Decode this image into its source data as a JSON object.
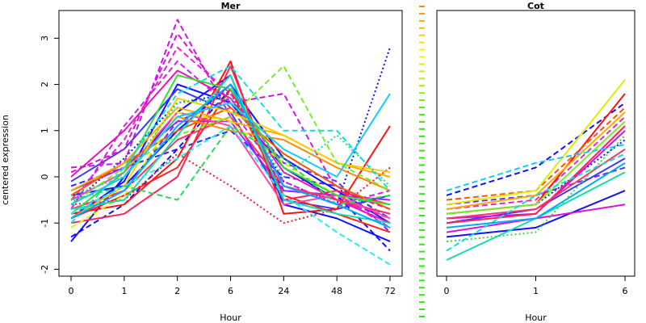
{
  "chart_data": [
    {
      "type": "line",
      "title": "Mer",
      "xlabel": "Hour",
      "ylabel": "centered expression",
      "categories": [
        "0",
        "1",
        "2",
        "6",
        "24",
        "48",
        "72"
      ],
      "yticks": [
        -2,
        -1,
        0,
        1,
        2,
        3
      ],
      "ylim": [
        -2.15,
        3.6
      ],
      "grid": false,
      "legend": "none",
      "series": [
        {
          "values": [
            -1.3,
            -0.6,
            0.6,
            1.9,
            -0.3,
            -0.4,
            -1.6
          ],
          "color": "#1111ff",
          "dash": "dashed"
        },
        {
          "values": [
            -0.9,
            -0.1,
            2.0,
            1.6,
            0.2,
            -0.5,
            -0.8
          ],
          "color": "#1111ff",
          "dash": "solid"
        },
        {
          "values": [
            -0.6,
            0.4,
            1.6,
            1.8,
            -0.1,
            -0.6,
            2.8
          ],
          "color": "#1111ff",
          "dash": "dotted"
        },
        {
          "values": [
            -0.4,
            -0.2,
            1.0,
            2.0,
            0.4,
            -0.3,
            -1.0
          ],
          "color": "#1111ff",
          "dash": "solid"
        },
        {
          "values": [
            -1.4,
            0.0,
            1.4,
            2.2,
            -0.6,
            -0.9,
            -1.4
          ],
          "color": "#1111ff",
          "dash": "solid"
        },
        {
          "values": [
            -0.2,
            0.2,
            0.6,
            1.0,
            0.0,
            -0.2,
            -0.9
          ],
          "color": "#2a2aff",
          "dash": "dashed"
        },
        {
          "values": [
            -0.1,
            0.6,
            1.9,
            1.4,
            -0.5,
            -0.7,
            -0.4
          ],
          "color": "#3a3aff",
          "dash": "solid"
        },
        {
          "values": [
            -0.8,
            -0.3,
            1.2,
            1.7,
            0.3,
            -0.1,
            -1.2
          ],
          "color": "#6a2bff",
          "dash": "dashed"
        },
        {
          "values": [
            0.2,
            0.3,
            3.4,
            1.3,
            -0.2,
            -0.5,
            -0.9
          ],
          "color": "#cc11ee",
          "dash": "dashed"
        },
        {
          "values": [
            0.1,
            0.6,
            3.1,
            1.6,
            1.8,
            -0.3,
            -0.7
          ],
          "color": "#dd11dd",
          "dash": "dashed"
        },
        {
          "values": [
            -0.5,
            0.8,
            2.8,
            1.8,
            0.2,
            -0.4,
            -1.1
          ],
          "color": "#ee22cc",
          "dash": "dashed"
        },
        {
          "values": [
            -0.7,
            1.1,
            2.5,
            1.5,
            -0.1,
            -0.6,
            -0.3
          ],
          "color": "#cc22ee",
          "dash": "dashed"
        },
        {
          "values": [
            -0.3,
            0.2,
            1.2,
            1.2,
            -0.3,
            -0.4,
            -0.5
          ],
          "color": "#aa22ff",
          "dash": "solid"
        },
        {
          "values": [
            0.0,
            1.0,
            2.3,
            1.7,
            0.1,
            -0.5,
            -1.0
          ],
          "color": "#ee11bb",
          "dash": "solid"
        },
        {
          "values": [
            -0.8,
            -0.6,
            0.4,
            2.5,
            -0.8,
            -0.7,
            1.1
          ],
          "color": "#ff1111",
          "dash": "solid"
        },
        {
          "values": [
            -0.9,
            -0.4,
            0.2,
            1.9,
            -0.4,
            -0.8,
            -1.2
          ],
          "color": "#ff2222",
          "dash": "solid"
        },
        {
          "values": [
            -0.6,
            -0.5,
            0.5,
            -0.2,
            -1.0,
            -0.7,
            0.2
          ],
          "color": "#ff1133",
          "dash": "dotted"
        },
        {
          "values": [
            -1.0,
            -0.8,
            0.0,
            2.4,
            -0.5,
            -0.3,
            -0.6
          ],
          "color": "#ff2255",
          "dash": "solid"
        },
        {
          "values": [
            -0.7,
            -0.3,
            0.8,
            1.3,
            -0.2,
            -0.5,
            -0.8
          ],
          "color": "#ff3366",
          "dash": "solid"
        },
        {
          "values": [
            -0.5,
            0.1,
            1.4,
            1.1,
            -0.6,
            -0.4,
            -0.9
          ],
          "color": "#ff44aa",
          "dash": "solid"
        },
        {
          "values": [
            -0.4,
            0.3,
            1.0,
            1.5,
            0.5,
            -0.2,
            -0.7
          ],
          "color": "#ff5500",
          "dash": "solid"
        },
        {
          "values": [
            -0.6,
            0.0,
            1.3,
            1.0,
            0.8,
            0.2,
            -0.3
          ],
          "color": "#ff8800",
          "dash": "solid"
        },
        {
          "values": [
            -0.3,
            0.3,
            1.5,
            1.2,
            0.9,
            0.3,
            0.0
          ],
          "color": "#ffaa00",
          "dash": "solid"
        },
        {
          "values": [
            -0.9,
            -0.2,
            1.7,
            1.4,
            0.9,
            0.3,
            0.1
          ],
          "color": "#ffcc00",
          "dash": "solid"
        },
        {
          "values": [
            -1.1,
            -0.4,
            1.4,
            1.2,
            0.3,
            -0.4,
            -0.6
          ],
          "color": "#ddee00",
          "dash": "dashed"
        },
        {
          "values": [
            -0.6,
            0.2,
            0.9,
            1.3,
            2.4,
            0.3,
            -0.3
          ],
          "color": "#77ee22",
          "dash": "dashed"
        },
        {
          "values": [
            -0.8,
            0.1,
            2.2,
            1.9,
            0.2,
            -0.4,
            -0.6
          ],
          "color": "#33dd33",
          "dash": "solid"
        },
        {
          "values": [
            -0.5,
            -0.2,
            -0.5,
            1.1,
            0.4,
            -0.6,
            -0.4
          ],
          "color": "#22dd55",
          "dash": "dashed"
        },
        {
          "values": [
            -0.4,
            0.0,
            1.6,
            1.7,
            0.0,
            0.9,
            -0.2
          ],
          "color": "#22dd88",
          "dash": "dotted"
        },
        {
          "values": [
            -0.7,
            -0.5,
            0.9,
            2.2,
            -0.5,
            -0.8,
            -1.0
          ],
          "color": "#11ddaa",
          "dash": "solid"
        },
        {
          "values": [
            -1.0,
            0.2,
            1.8,
            2.4,
            1.0,
            1.0,
            -0.3
          ],
          "color": "#11dddd",
          "dash": "dashed"
        },
        {
          "values": [
            -0.6,
            0.0,
            1.3,
            1.6,
            0.6,
            0.0,
            1.8
          ],
          "color": "#11ccff",
          "dash": "solid"
        },
        {
          "values": [
            -0.8,
            -0.2,
            0.4,
            1.1,
            -0.4,
            -1.2,
            -1.9
          ],
          "color": "#22eeee",
          "dash": "dashed"
        },
        {
          "values": [
            -0.9,
            -0.3,
            1.1,
            2.0,
            -0.2,
            -0.6,
            -1.1
          ],
          "color": "#00aaff",
          "dash": "solid"
        }
      ]
    },
    {
      "type": "line",
      "title": "Cot",
      "xlabel": "Hour",
      "ylabel": "",
      "categories": [
        "0",
        "1",
        "6"
      ],
      "ylim": [
        -2.15,
        3.6
      ],
      "grid": false,
      "legend": "none",
      "series": [
        {
          "values": [
            -1.3,
            -1.1,
            -0.3
          ],
          "color": "#1111ff",
          "dash": "solid"
        },
        {
          "values": [
            -0.4,
            0.2,
            1.6
          ],
          "color": "#1111ff",
          "dash": "dashed"
        },
        {
          "values": [
            -0.8,
            -0.6,
            0.8
          ],
          "color": "#1111ff",
          "dash": "dotted"
        },
        {
          "values": [
            -1.0,
            -0.7,
            0.4
          ],
          "color": "#3a3aff",
          "dash": "solid"
        },
        {
          "values": [
            -0.6,
            -0.4,
            0.2
          ],
          "color": "#6a2bff",
          "dash": "dashed"
        },
        {
          "values": [
            -0.9,
            -0.8,
            1.0
          ],
          "color": "#cc11ee",
          "dash": "solid"
        },
        {
          "values": [
            -0.7,
            -0.5,
            1.3
          ],
          "color": "#ee22cc",
          "dash": "dashed"
        },
        {
          "values": [
            -1.2,
            -0.9,
            -0.6
          ],
          "color": "#dd11dd",
          "dash": "solid"
        },
        {
          "values": [
            -0.8,
            -0.6,
            1.8
          ],
          "color": "#ff1111",
          "dash": "solid"
        },
        {
          "values": [
            -1.0,
            -0.8,
            1.1
          ],
          "color": "#ff2255",
          "dash": "solid"
        },
        {
          "values": [
            -0.9,
            -0.7,
            0.6
          ],
          "color": "#ff3366",
          "dash": "solid"
        },
        {
          "values": [
            -0.5,
            -0.3,
            1.5
          ],
          "color": "#ff5500",
          "dash": "dashed"
        },
        {
          "values": [
            -0.7,
            -0.4,
            1.4
          ],
          "color": "#ffaa00",
          "dash": "solid"
        },
        {
          "values": [
            -0.6,
            -0.3,
            2.1
          ],
          "color": "#ddee00",
          "dash": "solid"
        },
        {
          "values": [
            -0.8,
            -0.6,
            1.2
          ],
          "color": "#77ee22",
          "dash": "solid"
        },
        {
          "values": [
            -1.4,
            -1.2,
            0.9
          ],
          "color": "#33dd33",
          "dash": "dotted"
        },
        {
          "values": [
            -1.8,
            -0.9,
            0.1
          ],
          "color": "#11ddaa",
          "dash": "solid"
        },
        {
          "values": [
            -1.6,
            -0.4,
            0.5
          ],
          "color": "#11dddd",
          "dash": "dashed"
        },
        {
          "values": [
            -0.3,
            0.3,
            0.7
          ],
          "color": "#11ccff",
          "dash": "dashed"
        },
        {
          "values": [
            -1.1,
            -0.9,
            0.3
          ],
          "color": "#00aaff",
          "dash": "solid"
        }
      ]
    }
  ],
  "legend_strip": {
    "colors": [
      "#ff8800",
      "#ff9900",
      "#ffaa00",
      "#ffbb00",
      "#ffcc00",
      "#ffdd00",
      "#ffee00",
      "#f0f000",
      "#e0f000",
      "#ccf000",
      "#b8f000",
      "#a0f000",
      "#88ee00",
      "#70ee00",
      "#58ee00",
      "#40ee00",
      "#30ee00",
      "#22ee00",
      "#22ee00",
      "#22ee00",
      "#22ee00",
      "#22ee00",
      "#22ee00",
      "#22ee00",
      "#22ee00",
      "#22ee00",
      "#22ee00",
      "#22ee00",
      "#22ee00",
      "#22ee00",
      "#22ee00",
      "#22ee00",
      "#22ee00",
      "#22ee00",
      "#22ee00",
      "#22ee00",
      "#22ee00",
      "#22ee00",
      "#22ee00",
      "#22ee00",
      "#22ee00",
      "#22ee00",
      "#22ee00",
      "#22ee00"
    ]
  }
}
